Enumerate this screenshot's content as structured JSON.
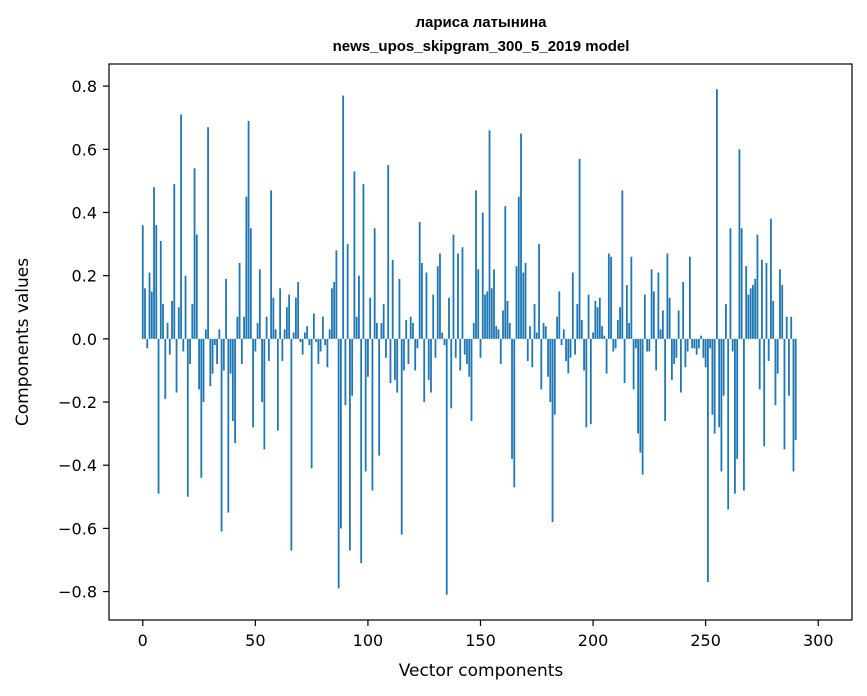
{
  "chart_data": {
    "type": "bar",
    "title": "лариса латынина",
    "subtitle": "news_upos_skipgram_300_5_2019 model",
    "xlabel": "Vector components",
    "ylabel": "Components values",
    "xlim": [
      -15,
      315
    ],
    "ylim": [
      -0.89,
      0.87
    ],
    "xticks": [
      0,
      50,
      100,
      150,
      200,
      250,
      300
    ],
    "yticks": [
      -0.8,
      -0.6,
      -0.4,
      -0.2,
      0.0,
      0.2,
      0.4,
      0.6,
      0.8
    ],
    "ytick_labels": [
      "−0.8",
      "−0.6",
      "−0.4",
      "−0.2",
      "0.0",
      "0.2",
      "0.4",
      "0.6",
      "0.8"
    ],
    "xtick_labels": [
      "0",
      "50",
      "100",
      "150",
      "200",
      "250",
      "300"
    ],
    "bar_color": "#1f77b4",
    "grid": false,
    "values": [
      0.36,
      0.16,
      -0.03,
      0.21,
      0.15,
      0.48,
      0.36,
      -0.49,
      0.31,
      0.11,
      -0.19,
      0.05,
      -0.05,
      0.12,
      0.49,
      -0.17,
      0.1,
      0.71,
      -0.04,
      0.2,
      -0.5,
      -0.08,
      0.11,
      0.54,
      0.33,
      -0.16,
      -0.44,
      -0.2,
      0.03,
      0.67,
      -0.15,
      -0.11,
      -0.02,
      -0.08,
      0.03,
      -0.61,
      -0.1,
      0.19,
      -0.55,
      -0.11,
      -0.26,
      -0.33,
      0.07,
      0.24,
      -0.08,
      0.07,
      0.45,
      0.69,
      0.35,
      -0.28,
      -0.04,
      0.05,
      0.22,
      -0.2,
      -0.35,
      0.07,
      -0.07,
      0.47,
      0.13,
      0.03,
      -0.29,
      0.16,
      -0.07,
      0.03,
      0.1,
      0.14,
      -0.67,
      0.02,
      0.13,
      0.18,
      -0.01,
      -0.05,
      0.02,
      0.04,
      -0.02,
      -0.41,
      0.08,
      -0.01,
      -0.08,
      -0.04,
      0.07,
      -0.02,
      -0.09,
      0.03,
      0.16,
      0.18,
      0.28,
      -0.79,
      -0.6,
      0.77,
      -0.21,
      0.3,
      -0.67,
      -0.18,
      0.53,
      0.07,
      0.2,
      -0.71,
      0.49,
      -0.42,
      -0.12,
      0.13,
      -0.48,
      0.35,
      0.05,
      -0.37,
      0.05,
      0.11,
      -0.06,
      0.55,
      -0.14,
      0.25,
      -0.13,
      -0.17,
      0.19,
      -0.62,
      -0.1,
      0.06,
      -0.08,
      0.07,
      0.05,
      -0.1,
      -0.03,
      0.37,
      0.24,
      -0.2,
      0.21,
      -0.13,
      -0.17,
      0.14,
      -0.06,
      0.23,
      0.27,
      0.02,
      -0.02,
      -0.81,
      0.13,
      -0.22,
      0.33,
      -0.06,
      0.27,
      -0.1,
      0.29,
      -0.05,
      -0.08,
      -0.12,
      -0.26,
      0.05,
      0.47,
      0.22,
      -0.06,
      0.4,
      0.14,
      0.15,
      0.66,
      0.16,
      0.22,
      0.04,
      0.03,
      -0.08,
      0.09,
      0.42,
      0.12,
      0.05,
      -0.38,
      -0.47,
      0.23,
      0.45,
      0.65,
      0.21,
      0.24,
      -0.07,
      0.04,
      -0.09,
      0.11,
      0.02,
      0.3,
      -0.16,
      0.05,
      0.04,
      -0.12,
      -0.2,
      -0.58,
      -0.24,
      0.07,
      0.15,
      -0.02,
      0.03,
      -0.07,
      -0.11,
      -0.06,
      0.21,
      -0.05,
      0.11,
      0.57,
      0.06,
      -0.1,
      -0.28,
      0.14,
      -0.27,
      0.02,
      0.12,
      0.1,
      0.13,
      0.04,
      0.01,
      -0.11,
      0.27,
      0.26,
      -0.04,
      -0.03,
      0.06,
      0.1,
      0.47,
      -0.14,
      0.17,
      0.05,
      0.26,
      -0.16,
      -0.03,
      -0.3,
      -0.36,
      -0.43,
      0.14,
      -0.04,
      -0.04,
      0.22,
      0.15,
      -0.1,
      0.21,
      0.03,
      0.09,
      -0.26,
      0.27,
      0.13,
      -0.13,
      -0.08,
      -0.06,
      0.09,
      -0.17,
      0.18,
      -0.09,
      -0.04,
      0.26,
      -0.03,
      -0.03,
      -0.05,
      -0.03,
      0.01,
      -0.06,
      -0.09,
      -0.77,
      -0.03,
      -0.24,
      -0.3,
      0.79,
      -0.28,
      -0.42,
      -0.18,
      0.11,
      -0.54,
      0.35,
      -0.04,
      -0.49,
      -0.38,
      0.6,
      0.35,
      -0.48,
      0.23,
      0.14,
      0.16,
      0.17,
      0.19,
      0.33,
      -0.16,
      0.25,
      -0.34,
      0.24,
      -0.07,
      0.38,
      0.12,
      -0.21,
      -0.11,
      0.22,
      0.17,
      -0.35,
      0.07,
      -0.18,
      0.07,
      -0.42,
      -0.32
    ]
  }
}
